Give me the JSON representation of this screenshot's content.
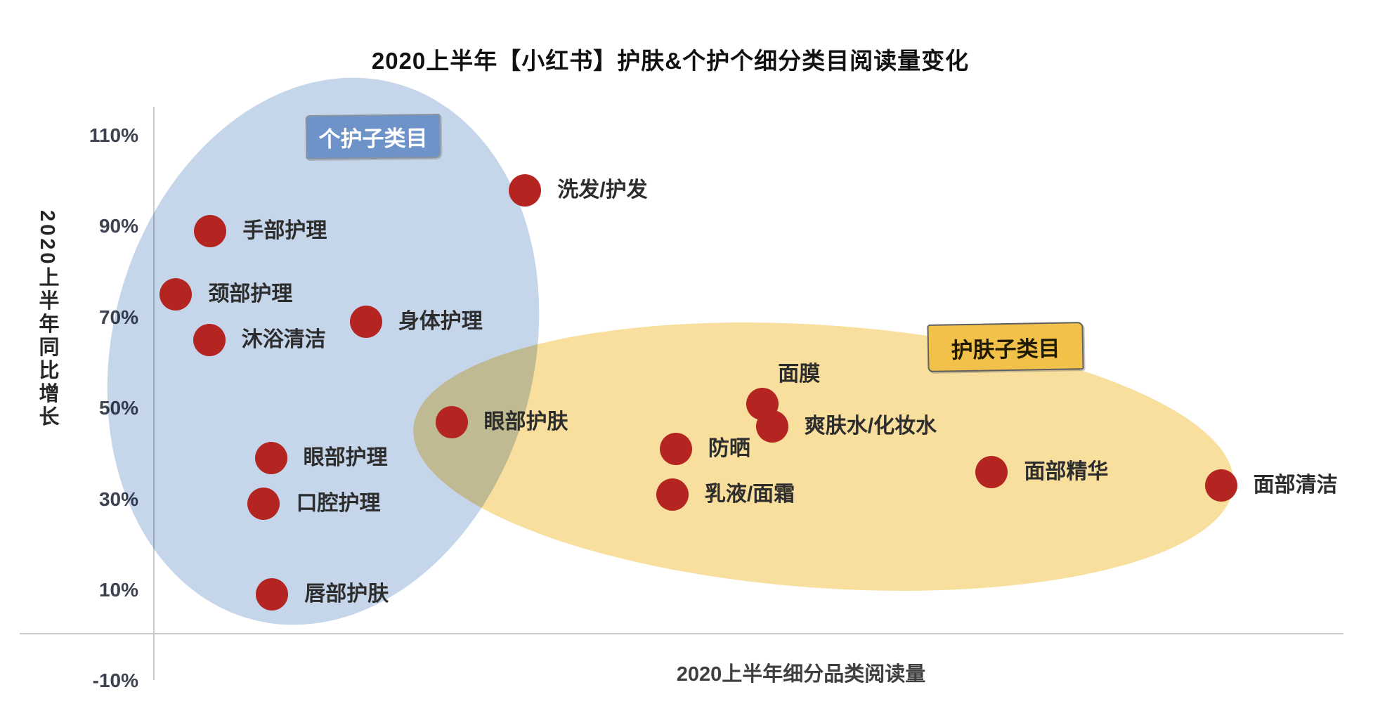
{
  "title": "2020上半年【小红书】护肤&个护个细分类目阅读量变化",
  "y_axis": {
    "title": "2020上半年同比增长"
  },
  "x_axis": {
    "title": "2020上半年细分品类阅读量"
  },
  "groups": [
    {
      "label": "个护子类目",
      "box_color": "#6e93c8",
      "box_text_color": "#ffffff",
      "ellipse_color": "#c5d5ea"
    },
    {
      "label": "护肤子类目",
      "box_color": "#f2c14a",
      "box_text_color": "#201a00",
      "ellipse_color": "#f8df9e"
    }
  ],
  "chart_data": {
    "type": "scatter",
    "title": "2020上半年【小红书】护肤&个护个细分类目阅读量变化",
    "xlabel": "2020上半年细分品类阅读量",
    "ylabel": "2020上半年同比增长",
    "ylim": [
      -10,
      110
    ],
    "y_ticks_pct": [
      110,
      90,
      70,
      50,
      30,
      10,
      -10
    ],
    "x_axis_numeric_labels": false,
    "x_note": "x_rel = relative position along reading-volume axis (0-100), no numeric x tick labels shown",
    "dot_color": "#b42521",
    "axis_color": "#c9c9c9",
    "points": [
      {
        "label": "洗发/护发",
        "group": "个护子类目",
        "growth_pct": 98,
        "x_rel": 31.2,
        "label_pos": "right"
      },
      {
        "label": "手部护理",
        "group": "个护子类目",
        "growth_pct": 89,
        "x_rel": 4.7,
        "label_pos": "right"
      },
      {
        "label": "颈部护理",
        "group": "个护子类目",
        "growth_pct": 75,
        "x_rel": 1.8,
        "label_pos": "right"
      },
      {
        "label": "身体护理",
        "group": "个护子类目",
        "growth_pct": 69,
        "x_rel": 17.8,
        "label_pos": "right"
      },
      {
        "label": "沐浴清洁",
        "group": "个护子类目",
        "growth_pct": 65,
        "x_rel": 4.6,
        "label_pos": "right"
      },
      {
        "label": "眼部护理",
        "group": "个护子类目",
        "growth_pct": 39,
        "x_rel": 9.8,
        "label_pos": "right"
      },
      {
        "label": "口腔护理",
        "group": "个护子类目",
        "growth_pct": 29,
        "x_rel": 9.2,
        "label_pos": "right"
      },
      {
        "label": "唇部护肤",
        "group": "个护子类目",
        "growth_pct": 9,
        "x_rel": 9.9,
        "label_pos": "right"
      },
      {
        "label": "眼部护肤",
        "group": "护肤子类目",
        "growth_pct": 47,
        "x_rel": 25.0,
        "label_pos": "right"
      },
      {
        "label": "面膜",
        "group": "护肤子类目",
        "growth_pct": 51,
        "x_rel": 51.2,
        "label_pos": "above"
      },
      {
        "label": "爽肤水/化妆水",
        "group": "护肤子类目",
        "growth_pct": 46,
        "x_rel": 52.0,
        "label_pos": "right"
      },
      {
        "label": "防晒",
        "group": "护肤子类目",
        "growth_pct": 41,
        "x_rel": 43.9,
        "label_pos": "right"
      },
      {
        "label": "乳液/面霜",
        "group": "护肤子类目",
        "growth_pct": 31,
        "x_rel": 43.6,
        "label_pos": "right"
      },
      {
        "label": "面部精华",
        "group": "护肤子类目",
        "growth_pct": 36,
        "x_rel": 70.5,
        "label_pos": "right"
      },
      {
        "label": "面部清洁",
        "group": "护肤子类目",
        "growth_pct": 33,
        "x_rel": 89.8,
        "label_pos": "right"
      }
    ]
  }
}
